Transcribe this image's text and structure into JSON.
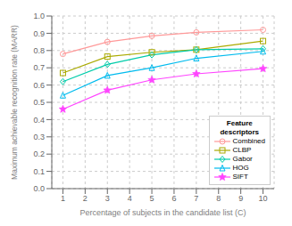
{
  "chart_data": {
    "type": "line",
    "xlabel": "Percentage of subjects in the candidate list (C)",
    "ylabel": "Maximum achievable recognition rate (MARR)",
    "legend_title": "Feature\ndescriptors",
    "legend": "lower right",
    "grid": true,
    "x": [
      1,
      3,
      5,
      7,
      10
    ],
    "xlim": [
      0.5,
      10.5
    ],
    "ylim": [
      0.0,
      1.0
    ],
    "xticks": [
      1,
      2,
      3,
      4,
      5,
      6,
      7,
      8,
      9,
      10
    ],
    "yticks": [
      {
        "value": 0,
        "label": "0.0"
      },
      0.1,
      0.2,
      0.3,
      0.4,
      0.5,
      0.6,
      0.7,
      0.8,
      0.9,
      {
        "value": 1,
        "label": "1.0"
      }
    ],
    "series": [
      {
        "name": "Combined",
        "color": "#FF9999",
        "marker": "circle",
        "values": [
          0.78,
          0.85,
          0.885,
          0.905,
          0.92
        ]
      },
      {
        "name": "CLBP",
        "color": "#AAAA00",
        "marker": "square",
        "values": [
          0.67,
          0.765,
          0.79,
          0.805,
          0.855
        ]
      },
      {
        "name": "Gabor",
        "color": "#00CCAA",
        "marker": "diamond",
        "values": [
          0.62,
          0.72,
          0.775,
          0.805,
          0.81
        ]
      },
      {
        "name": "HOG",
        "color": "#00BBEE",
        "marker": "triangle",
        "values": [
          0.54,
          0.655,
          0.7,
          0.755,
          0.795
        ]
      },
      {
        "name": "SIFT",
        "color": "#FF44FF",
        "marker": "star",
        "values": [
          0.46,
          0.57,
          0.63,
          0.665,
          0.695
        ]
      }
    ]
  }
}
